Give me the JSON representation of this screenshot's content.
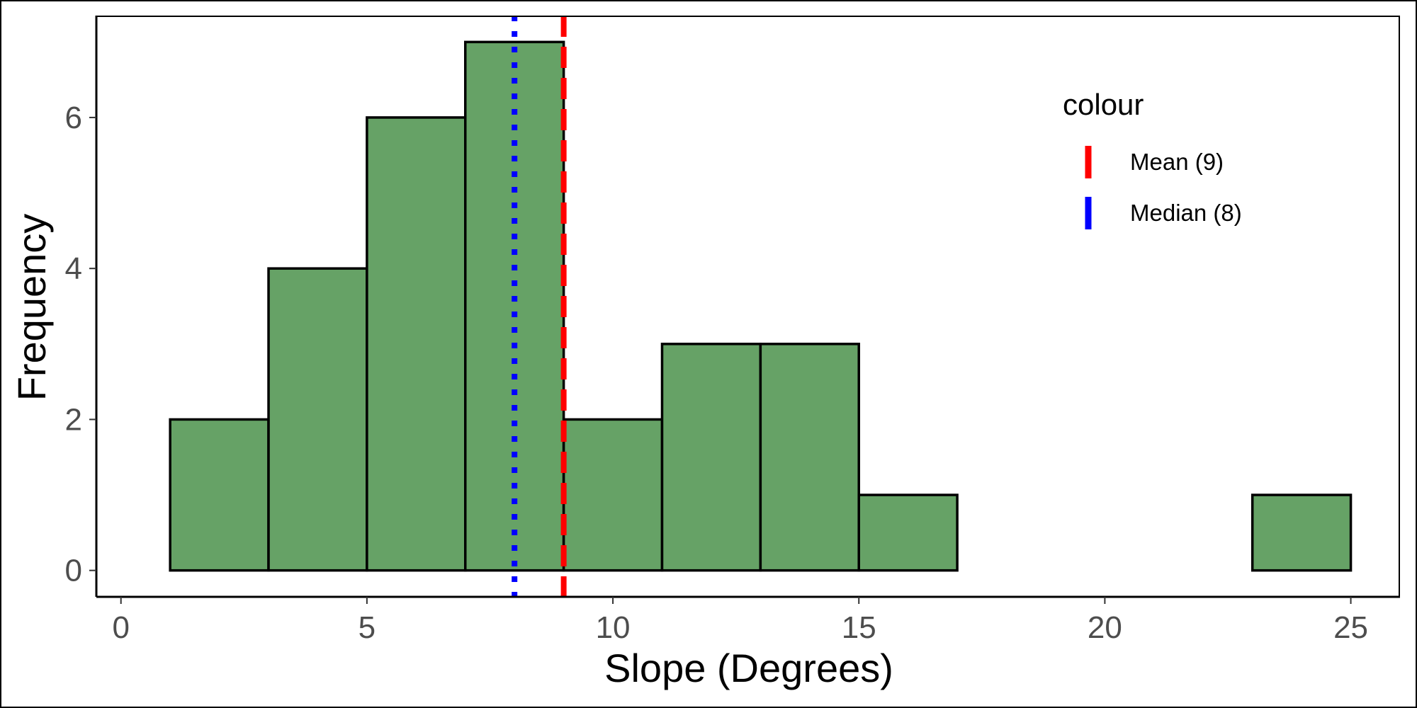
{
  "chart_data": {
    "type": "histogram",
    "title": "",
    "xlabel": "Slope (Degrees)",
    "ylabel": "Frequency",
    "xlim": [
      -0.5,
      26.0
    ],
    "ylim": [
      -0.35,
      7.35
    ],
    "x_ticks": [
      0,
      5,
      10,
      15,
      20,
      25
    ],
    "y_ticks": [
      0,
      2,
      4,
      6
    ],
    "bin_width": 2,
    "bins": [
      {
        "start": 1,
        "end": 3,
        "count": 2
      },
      {
        "start": 3,
        "end": 5,
        "count": 4
      },
      {
        "start": 5,
        "end": 7,
        "count": 6
      },
      {
        "start": 7,
        "end": 9,
        "count": 7
      },
      {
        "start": 9,
        "end": 11,
        "count": 2
      },
      {
        "start": 11,
        "end": 13,
        "count": 3
      },
      {
        "start": 13,
        "end": 15,
        "count": 3
      },
      {
        "start": 15,
        "end": 17,
        "count": 1
      },
      {
        "start": 17,
        "end": 19,
        "count": 0
      },
      {
        "start": 19,
        "end": 21,
        "count": 0
      },
      {
        "start": 21,
        "end": 23,
        "count": 0
      },
      {
        "start": 23,
        "end": 25,
        "count": 1
      }
    ],
    "bar_fill": "#66a266",
    "bar_stroke": "#000000",
    "reference_lines": [
      {
        "name": "Mean (9)",
        "x": 9,
        "color": "#ff0000",
        "style": "dashed"
      },
      {
        "name": "Median (8)",
        "x": 8,
        "color": "#0000ff",
        "style": "dotted"
      }
    ],
    "legend": {
      "title": "colour",
      "position": "top-right",
      "entries": [
        {
          "label": "Mean (9)",
          "color": "#ff0000"
        },
        {
          "label": "Median (8)",
          "color": "#0000ff"
        }
      ]
    },
    "grid": false
  }
}
